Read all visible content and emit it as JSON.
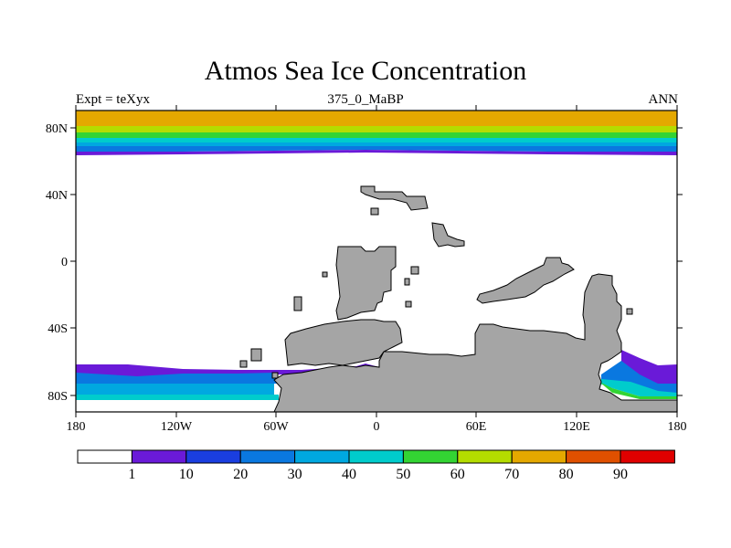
{
  "header": {
    "title": "Atmos Sea Ice Concentration",
    "left_label": "Expt = teXyx",
    "center_label": "375_0_MaBP",
    "right_label": "ANN"
  },
  "axes": {
    "x_ticks": [
      "180",
      "120W",
      "60W",
      "0",
      "60E",
      "120E",
      "180"
    ],
    "y_ticks": [
      "80N",
      "40N",
      "0",
      "40S",
      "80S"
    ]
  },
  "colorbar": {
    "labels": [
      "1",
      "10",
      "20",
      "30",
      "40",
      "50",
      "60",
      "70",
      "80",
      "90"
    ],
    "colors": [
      "#ffffff",
      "#6a1ad8",
      "#1a3ee0",
      "#0a78e0",
      "#00a8e0",
      "#00cccc",
      "#33d433",
      "#b4dc00",
      "#e4a800",
      "#e05000",
      "#e00000"
    ]
  },
  "map": {
    "land_color": "#a5a5a5",
    "ocean_color": "#ffffff"
  }
}
